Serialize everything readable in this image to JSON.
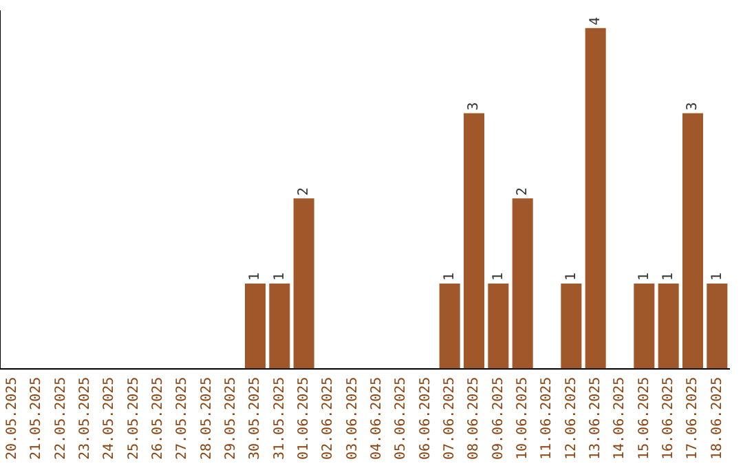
{
  "chart_data": {
    "type": "bar",
    "categories": [
      "20.05.2025",
      "21.05.2025",
      "22.05.2025",
      "23.05.2025",
      "24.05.2025",
      "25.05.2025",
      "26.05.2025",
      "27.05.2025",
      "28.05.2025",
      "29.05.2025",
      "30.05.2025",
      "31.05.2025",
      "01.06.2025",
      "02.06.2025",
      "03.06.2025",
      "04.06.2025",
      "05.06.2025",
      "06.06.2025",
      "07.06.2025",
      "08.06.2025",
      "09.06.2025",
      "10.06.2025",
      "11.06.2025",
      "12.06.2025",
      "13.06.2025",
      "14.06.2025",
      "15.06.2025",
      "16.06.2025",
      "17.06.2025",
      "18.06.2025"
    ],
    "values": [
      null,
      null,
      null,
      null,
      null,
      null,
      null,
      null,
      null,
      null,
      1,
      1,
      2,
      null,
      null,
      null,
      null,
      null,
      1,
      3,
      1,
      2,
      null,
      1,
      4,
      null,
      1,
      1,
      3,
      1
    ],
    "color": "#a0582a",
    "ylim": [
      0,
      4.2
    ],
    "tick_labels": "x",
    "grid": false,
    "legend": false,
    "data_labels": true
  }
}
